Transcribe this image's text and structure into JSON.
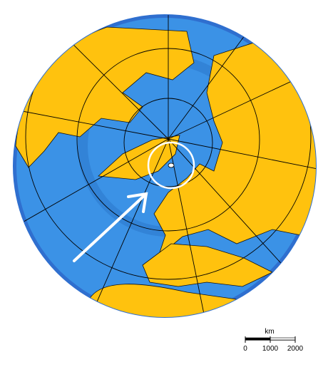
{
  "scale_bar": {
    "unit": "km",
    "ticks": [
      0,
      1000,
      2000
    ]
  }
}
